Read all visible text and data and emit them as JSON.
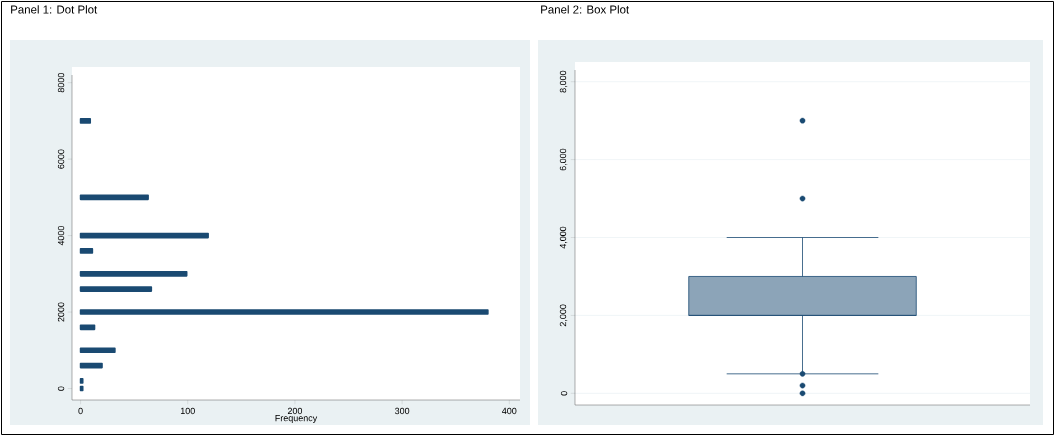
{
  "chart_data": [
    {
      "type": "bar",
      "orientation": "horizontal",
      "title": "Panel 1: Dot Plot",
      "xlabel": "Frequency",
      "x": [
        0,
        200,
        600,
        1000,
        1600,
        2000,
        2600,
        3000,
        3600,
        4000,
        5000,
        7000
      ],
      "values": [
        2,
        2,
        20,
        32,
        13,
        380,
        66,
        99,
        11,
        119,
        63,
        9
      ],
      "color": "#1a4a72",
      "xlim": [
        -8,
        410
      ],
      "xticks": [
        0,
        100,
        200,
        300,
        400
      ],
      "ylim": [
        -300,
        8200
      ],
      "yticks": [
        0,
        2000,
        4000,
        6000,
        8000
      ]
    },
    {
      "type": "box",
      "title": "Panel 2: Box Plot",
      "categories": [
        null
      ],
      "color": "#1a4a72",
      "boxes": [
        {
          "low": 500,
          "q1": 2000,
          "median": 2000,
          "q3": 3000,
          "high": 4000,
          "outliers": [
            0,
            200,
            500,
            5000,
            7000
          ]
        }
      ],
      "ylim": [
        -300,
        8300
      ],
      "yticks": [
        {
          "value": 0,
          "label": "0"
        },
        {
          "value": 2000,
          "label": "2,000"
        },
        {
          "value": 4000,
          "label": "4,000"
        },
        {
          "value": 6000,
          "label": "6,000"
        },
        {
          "value": 8000,
          "label": "8,000"
        }
      ],
      "grid": "y"
    }
  ]
}
